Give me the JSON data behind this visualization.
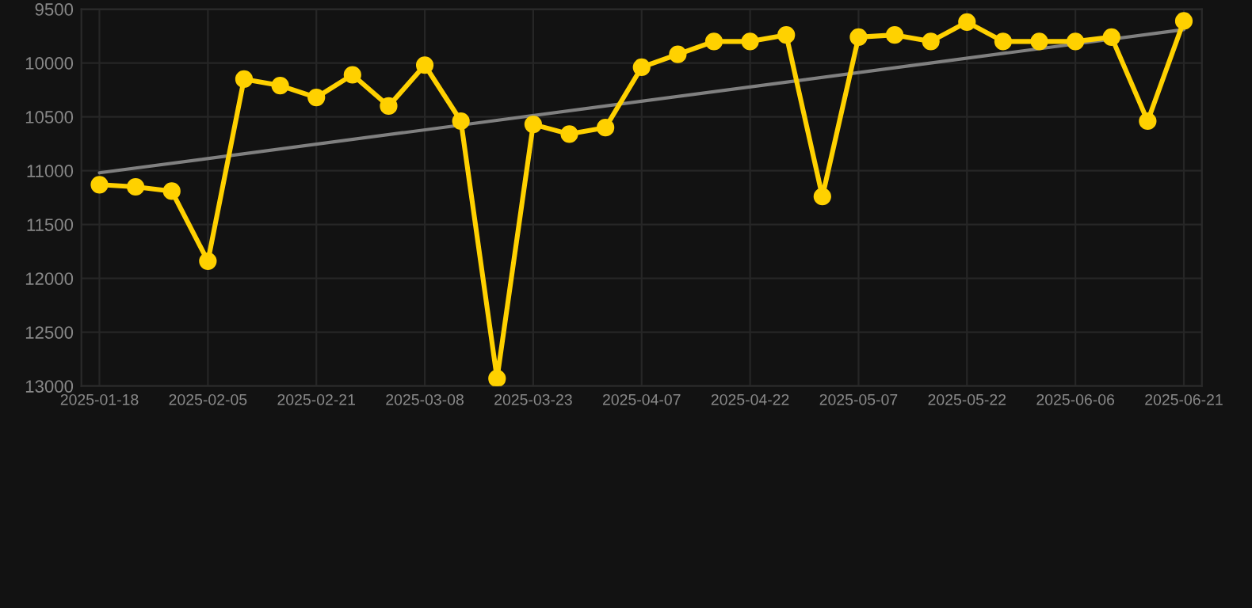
{
  "chart_data": {
    "type": "line",
    "categories": [
      "2025-01-18",
      null,
      null,
      "2025-02-05",
      null,
      null,
      "2025-02-21",
      null,
      null,
      "2025-03-08",
      null,
      null,
      "2025-03-23",
      null,
      null,
      "2025-04-07",
      null,
      null,
      "2025-04-22",
      null,
      null,
      "2025-05-07",
      null,
      null,
      "2025-05-22",
      null,
      null,
      "2025-06-06",
      null,
      null,
      "2025-06-21"
    ],
    "series": [
      {
        "color": "#ffd100",
        "marker": "circle",
        "values": [
          11130,
          11150,
          11190,
          11840,
          10150,
          10210,
          10320,
          10110,
          10400,
          10020,
          10540,
          12930,
          10570,
          10660,
          10600,
          10040,
          9920,
          9800,
          9800,
          9740,
          11240,
          9760,
          9740,
          9800,
          9620,
          9800,
          9800,
          9800,
          9760,
          10540,
          9610
        ]
      },
      {
        "color": "#808080",
        "marker": "none",
        "values": [
          11020,
          null,
          null,
          null,
          null,
          null,
          null,
          null,
          null,
          null,
          null,
          null,
          null,
          null,
          null,
          null,
          null,
          null,
          null,
          null,
          null,
          null,
          null,
          null,
          null,
          null,
          null,
          null,
          null,
          null,
          9690
        ]
      }
    ],
    "ylim": [
      13000,
      9500
    ],
    "yticks": [
      9500,
      10000,
      10500,
      11000,
      11500,
      12000,
      12500,
      13000
    ],
    "grid": true,
    "line_style": "solid"
  }
}
